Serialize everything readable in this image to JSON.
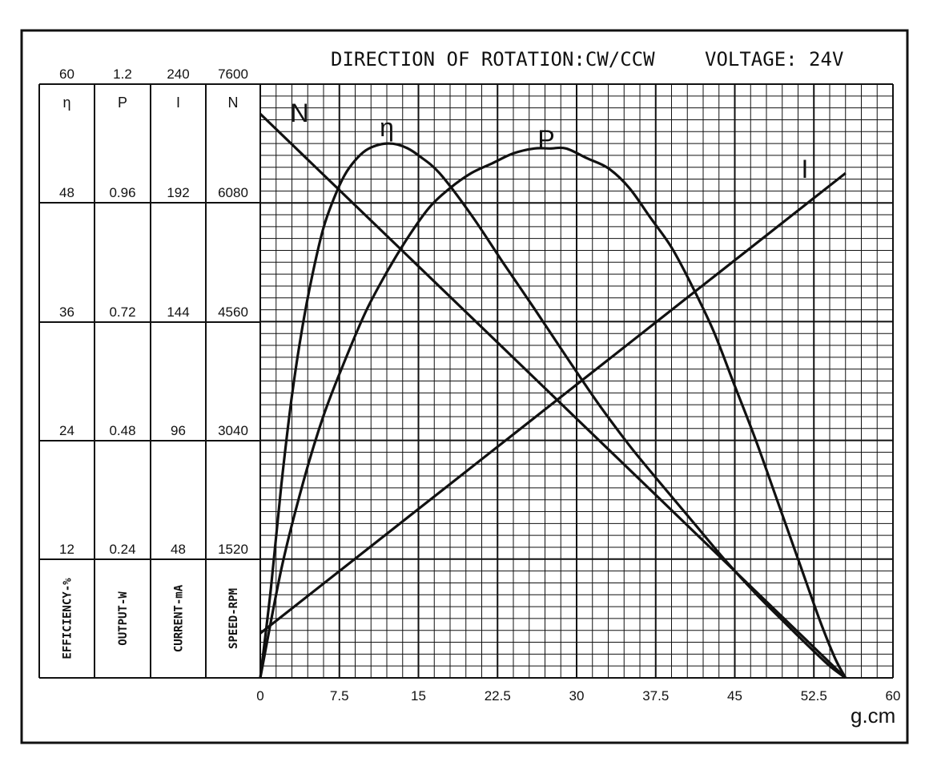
{
  "header": {
    "rotation": "DIRECTION OF ROTATION:CW/CCW",
    "voltage": "VOLTAGE: 24V"
  },
  "chart_data": {
    "type": "line",
    "title": "DIRECTION OF ROTATION:CW/CCW    VOLTAGE: 24V",
    "xlabel": "g.cm",
    "xlim": [
      0,
      60
    ],
    "x_ticks": [
      "0",
      "7.5",
      "15",
      "22.5",
      "30",
      "37.5",
      "45",
      "52.5",
      "60"
    ],
    "grid": true,
    "axes": [
      {
        "key": "eta",
        "symbol": "η",
        "label": "EFFICIENCY-%",
        "top": "60",
        "ticks": [
          "48",
          "36",
          "24",
          "12"
        ],
        "max": 60
      },
      {
        "key": "P",
        "symbol": "P",
        "label": "OUTPUT-W",
        "top": "1.2",
        "ticks": [
          "0.96",
          "0.72",
          "0.48",
          "0.24"
        ],
        "max": 1.2
      },
      {
        "key": "I",
        "symbol": "I",
        "label": "CURRENT-mA",
        "top": "240",
        "ticks": [
          "192",
          "144",
          "96",
          "48"
        ],
        "max": 240
      },
      {
        "key": "N",
        "symbol": "N",
        "label": "SPEED-RPM",
        "top": "7600",
        "ticks": [
          "6080",
          "4560",
          "3040",
          "1520"
        ],
        "max": 7600
      }
    ],
    "series": [
      {
        "name": "N",
        "axis": "N",
        "x": [
          0,
          55.5
        ],
        "y": [
          7220,
          0
        ]
      },
      {
        "name": "I",
        "axis": "I",
        "x": [
          0,
          55.5
        ],
        "y": [
          18,
          204
        ]
      },
      {
        "name": "η",
        "axis": "eta",
        "x": [
          0,
          1,
          2,
          3,
          4,
          5,
          6,
          7,
          8,
          9,
          10,
          11,
          12,
          13,
          14,
          15,
          17,
          20,
          23,
          26,
          29,
          32,
          35,
          38,
          41,
          44,
          47,
          50,
          52,
          54,
          55.5
        ],
        "y": [
          0,
          9,
          19.5,
          28.5,
          35.5,
          41,
          45.5,
          48.5,
          50.8,
          52.3,
          53.3,
          53.8,
          54.0,
          53.9,
          53.5,
          52.8,
          51.0,
          46.8,
          42.0,
          37.3,
          32.5,
          27.8,
          23.5,
          19.6,
          15.8,
          12.0,
          8.5,
          5.3,
          3.2,
          1.2,
          0
        ]
      },
      {
        "name": "P",
        "axis": "P",
        "x": [
          0,
          2,
          4,
          6,
          8,
          10,
          12,
          14,
          16,
          18,
          20,
          22,
          24,
          26,
          27.5,
          29,
          31,
          33,
          35,
          37,
          39,
          41,
          43,
          45,
          47,
          49,
          51,
          53,
          54.5,
          55.5
        ],
        "y": [
          0,
          0.22,
          0.39,
          0.53,
          0.64,
          0.74,
          0.82,
          0.89,
          0.95,
          0.99,
          1.02,
          1.04,
          1.06,
          1.07,
          1.07,
          1.07,
          1.05,
          1.03,
          0.99,
          0.93,
          0.87,
          0.79,
          0.7,
          0.59,
          0.48,
          0.36,
          0.24,
          0.12,
          0.04,
          0
        ]
      }
    ]
  }
}
